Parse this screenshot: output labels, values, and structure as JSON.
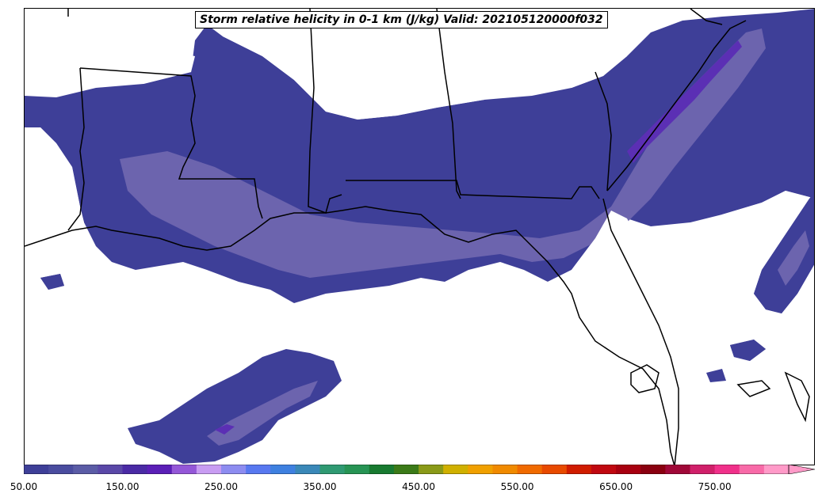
{
  "title": "Storm relative helicity in 0-1 km (J/kg) Valid: 202105120000f032",
  "colorbar": {
    "tick_labels": [
      "50.00",
      "150.00",
      "250.00",
      "350.00",
      "450.00",
      "550.00",
      "650.00",
      "750.00"
    ],
    "colors": [
      "#3e3f98",
      "#4a4c9f",
      "#5b5ca6",
      "#5a48a8",
      "#4a2aa5",
      "#5b1fb7",
      "#9457d8",
      "#c89cf2",
      "#8d8cf0",
      "#5878f0",
      "#3e80e0",
      "#3a88b8",
      "#2f9a72",
      "#279454",
      "#187a30",
      "#3b7a18",
      "#8a9a18",
      "#d0b000",
      "#f0a000",
      "#f08a00",
      "#f06a00",
      "#e84a00",
      "#d01c00",
      "#c00810",
      "#a80010",
      "#8a0010",
      "#a00838",
      "#d0206a",
      "#f0308a",
      "#f86aa8",
      "#ff9ac8"
    ],
    "arrow_color": "#ff9ac8"
  },
  "map": {
    "fill_levels": {
      "level_1": "#3e3f98",
      "level_2": "#5b5ca6",
      "level_3": "#6c64ae",
      "level_4": "#5b2fb4"
    },
    "border_color": "#000000"
  }
}
